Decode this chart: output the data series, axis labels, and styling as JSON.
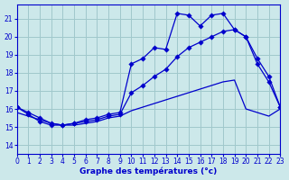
{
  "xlabel": "Graphe des températures (°c)",
  "bg_color": "#cce8ea",
  "grid_color": "#a0c8cc",
  "line_color": "#0000cc",
  "xlim": [
    0,
    23
  ],
  "ylim": [
    13.5,
    21.8
  ],
  "yticks": [
    14,
    15,
    16,
    17,
    18,
    19,
    20,
    21
  ],
  "xticks": [
    0,
    1,
    2,
    3,
    4,
    5,
    6,
    7,
    8,
    9,
    10,
    11,
    12,
    13,
    14,
    15,
    16,
    17,
    18,
    19,
    20,
    21,
    22,
    23
  ],
  "s1_x": [
    0,
    1,
    2,
    3,
    4,
    5,
    6,
    7,
    8,
    9,
    10,
    11,
    12,
    13,
    14,
    15,
    16,
    17,
    18,
    19,
    20,
    21,
    22,
    23
  ],
  "s1_y": [
    16.1,
    15.7,
    15.3,
    15.1,
    15.1,
    15.2,
    15.4,
    15.5,
    15.7,
    15.8,
    18.5,
    18.8,
    19.4,
    19.3,
    21.3,
    21.2,
    20.6,
    21.2,
    21.3,
    20.4,
    20.0,
    18.5,
    17.5,
    16.1
  ],
  "s2_x": [
    0,
    1,
    2,
    3,
    4,
    5,
    6,
    7,
    8,
    9,
    10,
    11,
    12,
    13,
    14,
    15,
    16,
    17,
    18,
    19,
    20,
    21,
    22,
    23
  ],
  "s2_y": [
    16.1,
    15.8,
    15.5,
    15.2,
    15.1,
    15.2,
    15.3,
    15.4,
    15.6,
    15.7,
    16.9,
    17.3,
    17.8,
    18.2,
    18.9,
    19.4,
    19.7,
    20.0,
    20.3,
    20.4,
    20.0,
    18.8,
    17.8,
    16.1
  ],
  "s3_x": [
    0,
    1,
    2,
    3,
    4,
    5,
    6,
    7,
    8,
    9,
    10,
    11,
    12,
    13,
    14,
    15,
    16,
    17,
    18,
    19,
    20,
    21,
    22,
    23
  ],
  "s3_y": [
    15.8,
    15.6,
    15.4,
    15.2,
    15.1,
    15.1,
    15.2,
    15.3,
    15.5,
    15.6,
    15.9,
    16.1,
    16.3,
    16.5,
    16.7,
    16.9,
    17.1,
    17.3,
    17.5,
    17.6,
    16.0,
    15.8,
    15.6,
    16.0
  ]
}
